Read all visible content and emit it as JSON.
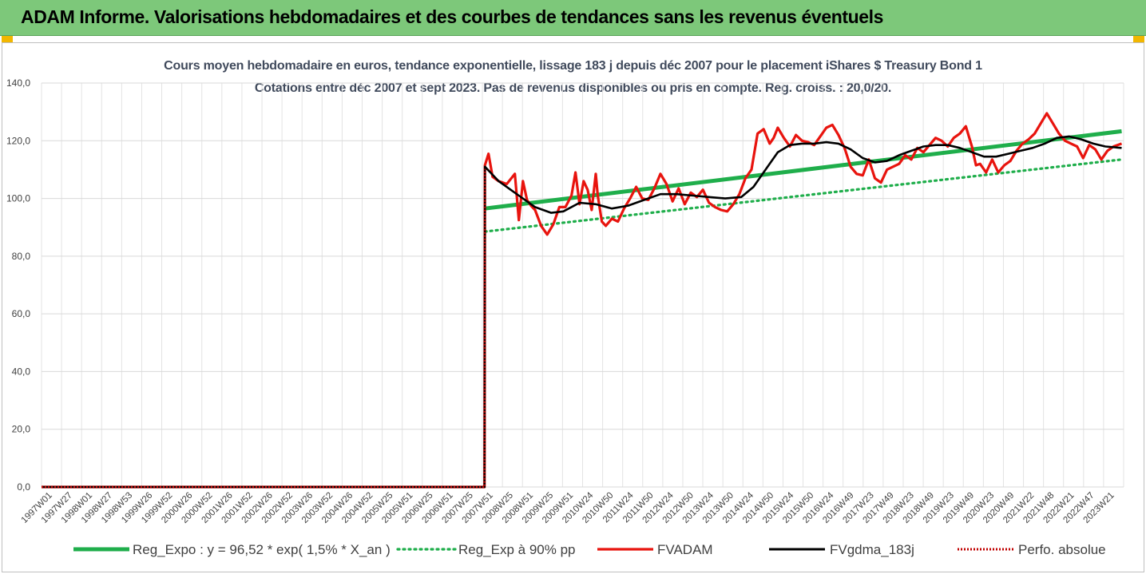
{
  "header": {
    "title": "ADAM Informe. Valorisations hebdomadaires et des courbes de tendances sans les revenus éventuels"
  },
  "colors": {
    "banner": "#7dc87a",
    "corner": "#f2b700",
    "reg_expo": "#1fae4b",
    "reg_exp_90": "#1fae4b",
    "fvadam": "#e8140e",
    "fvgdma": "#000000",
    "perfo": "#c00000"
  },
  "chart_data": {
    "type": "line",
    "title": "Cours moyen hebdomadaire en euros, tendance exponentielle, lissage 183 j depuis déc 2007 pour le placement iShares $ Treasury Bond 1",
    "subtitle": "Cotations entre déc 2007 et sept 2023. Pas de revenus disponibles ou pris en compte. Reg. croiss. : 20,0/20.",
    "xlabel": "",
    "ylabel": "",
    "ylim": [
      0,
      140
    ],
    "yticks": [
      "0,0",
      "20,0",
      "40,0",
      "60,0",
      "80,0",
      "100,0",
      "120,0",
      "140,0"
    ],
    "grid": true,
    "legend_position": "bottom",
    "categories": [
      "1997W01",
      "1997W27",
      "1998W01",
      "1998W27",
      "1998W53",
      "1999W26",
      "1999W52",
      "2000W26",
      "2000W52",
      "2001W26",
      "2001W52",
      "2002W26",
      "2002W52",
      "2003W26",
      "2003W52",
      "2004W26",
      "2004W52",
      "2005W25",
      "2005W51",
      "2006W25",
      "2006W51",
      "2007W25",
      "2007W51",
      "2008W25",
      "2008W51",
      "2009W25",
      "2009W51",
      "2010W24",
      "2010W50",
      "2011W24",
      "2011W50",
      "2012W24",
      "2012W50",
      "2013W24",
      "2013W50",
      "2014W24",
      "2014W50",
      "2015W24",
      "2015W50",
      "2016W24",
      "2016W49",
      "2017W23",
      "2017W49",
      "2018W23",
      "2018W49",
      "2019W23",
      "2019W49",
      "2020W23",
      "2020W49",
      "2021W22",
      "2021W48",
      "2022W21",
      "2022W47",
      "2023W21"
    ],
    "series": [
      {
        "name": "Reg_Expo : y = 96,52 * exp( 1,5% *  X_an )",
        "style": "solid-thick",
        "x": [
          2007.96,
          2023.7
        ],
        "values": [
          96.5,
          123.3
        ]
      },
      {
        "name": "Reg_Exp à 90% pp",
        "style": "dotted",
        "x": [
          2007.96,
          2023.7
        ],
        "values": [
          88.5,
          113.5
        ]
      },
      {
        "name": "FVADAM",
        "style": "solid",
        "x": [
          1997.0,
          2007.95,
          2007.96,
          2008.05,
          2008.15,
          2008.3,
          2008.5,
          2008.7,
          2008.8,
          2008.9,
          2009.0,
          2009.1,
          2009.2,
          2009.35,
          2009.5,
          2009.65,
          2009.8,
          2009.95,
          2010.1,
          2010.2,
          2010.3,
          2010.4,
          2010.5,
          2010.6,
          2010.7,
          2010.75,
          2010.85,
          2010.95,
          2011.1,
          2011.25,
          2011.4,
          2011.55,
          2011.7,
          2011.85,
          2012.0,
          2012.15,
          2012.3,
          2012.45,
          2012.6,
          2012.75,
          2012.9,
          2013.05,
          2013.2,
          2013.35,
          2013.5,
          2013.65,
          2013.8,
          2013.95,
          2014.1,
          2014.25,
          2014.4,
          2014.55,
          2014.7,
          2014.85,
          2015.0,
          2015.1,
          2015.2,
          2015.35,
          2015.5,
          2015.65,
          2015.8,
          2015.95,
          2016.1,
          2016.25,
          2016.4,
          2016.55,
          2016.7,
          2016.85,
          2017.0,
          2017.15,
          2017.3,
          2017.45,
          2017.6,
          2017.75,
          2017.9,
          2018.05,
          2018.2,
          2018.35,
          2018.5,
          2018.65,
          2018.8,
          2018.95,
          2019.1,
          2019.25,
          2019.4,
          2019.55,
          2019.7,
          2019.85,
          2020.0,
          2020.1,
          2020.2,
          2020.35,
          2020.5,
          2020.65,
          2020.8,
          2020.95,
          2021.1,
          2021.25,
          2021.4,
          2021.55,
          2021.7,
          2021.85,
          2022.0,
          2022.15,
          2022.3,
          2022.45,
          2022.6,
          2022.75,
          2022.9,
          2023.05,
          2023.2,
          2023.35,
          2023.5,
          2023.7
        ],
        "values": [
          0,
          0,
          111.5,
          115.5,
          107.5,
          106.0,
          105.0,
          108.5,
          92.5,
          106.0,
          99.5,
          97.5,
          96.0,
          90.5,
          87.5,
          91.0,
          97.0,
          97.0,
          101.0,
          109.0,
          98.0,
          106.0,
          103.0,
          96.0,
          108.5,
          101.0,
          92.0,
          90.5,
          93.0,
          92.0,
          96.5,
          100.0,
          104.0,
          100.0,
          99.5,
          103.5,
          108.5,
          105.0,
          99.0,
          103.5,
          98.0,
          102.0,
          100.5,
          103.0,
          98.5,
          97.0,
          96.0,
          95.5,
          98.0,
          101.5,
          107.0,
          110.0,
          122.5,
          124.0,
          119.0,
          121.0,
          124.5,
          121.0,
          118.0,
          122.0,
          120.0,
          119.5,
          118.5,
          121.5,
          124.5,
          125.5,
          122.0,
          117.5,
          111.0,
          108.5,
          108.0,
          113.5,
          107.0,
          105.5,
          110.0,
          111.0,
          112.0,
          115.0,
          113.5,
          117.5,
          116.0,
          118.5,
          121.0,
          120.0,
          118.0,
          121.0,
          122.5,
          125.0,
          118.0,
          111.5,
          112.0,
          109.0,
          113.5,
          109.0,
          111.5,
          113.0,
          116.5,
          119.0,
          120.5,
          122.5,
          126.0,
          129.5,
          126.0,
          122.5,
          120.0,
          119.0,
          118.0,
          114.0,
          118.5,
          117.0,
          113.5,
          116.5,
          118.0,
          119.0
        ]
      },
      {
        "name": "FVgdma_183j",
        "style": "solid",
        "x": [
          1997.0,
          2007.95,
          2007.96,
          2008.3,
          2008.8,
          2009.2,
          2009.6,
          2009.9,
          2010.3,
          2010.7,
          2011.1,
          2011.5,
          2011.9,
          2012.3,
          2012.7,
          2013.1,
          2013.5,
          2013.9,
          2014.3,
          2014.6,
          2014.9,
          2015.2,
          2015.5,
          2015.8,
          2016.1,
          2016.4,
          2016.7,
          2017.0,
          2017.3,
          2017.6,
          2017.9,
          2018.2,
          2018.5,
          2018.8,
          2019.1,
          2019.4,
          2019.7,
          2020.0,
          2020.3,
          2020.6,
          2020.9,
          2021.2,
          2021.5,
          2021.8,
          2022.1,
          2022.4,
          2022.7,
          2023.0,
          2023.3,
          2023.7
        ],
        "values": [
          0,
          0,
          111.0,
          106.0,
          101.0,
          97.0,
          95.0,
          95.5,
          98.5,
          98.0,
          96.5,
          97.5,
          99.5,
          101.5,
          101.5,
          101.0,
          100.5,
          100.0,
          100.5,
          104.0,
          110.0,
          116.0,
          118.5,
          119.0,
          119.0,
          119.5,
          119.0,
          117.0,
          114.0,
          112.5,
          113.0,
          115.0,
          116.5,
          118.0,
          118.5,
          118.5,
          117.5,
          116.0,
          114.5,
          114.5,
          115.5,
          116.5,
          117.5,
          119.0,
          121.0,
          121.5,
          120.5,
          119.0,
          118.0,
          117.5
        ]
      },
      {
        "name": "Perfo. absolue",
        "style": "dotted",
        "x": [
          1997.0,
          2007.95,
          2007.96,
          2007.97
        ],
        "values": [
          0,
          0,
          110.0,
          110.0
        ]
      }
    ]
  }
}
